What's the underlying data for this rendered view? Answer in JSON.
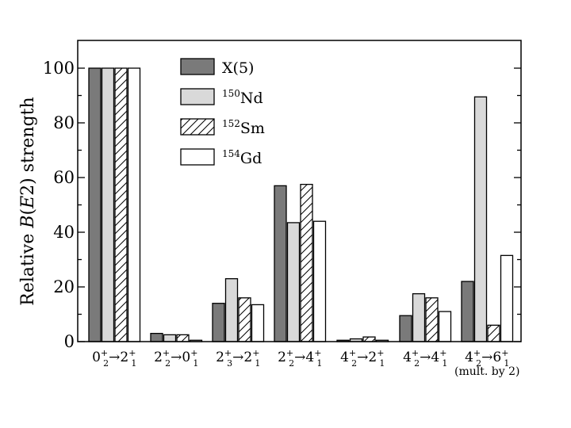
{
  "chart_data": {
    "type": "bar",
    "ylabel": "Relative B(E2) strength",
    "ylabel_parts": [
      "Relative ",
      "B",
      "(",
      "E",
      "2) strength"
    ],
    "ylim": [
      0,
      105
    ],
    "yticks": [
      0,
      20,
      40,
      60,
      80,
      100
    ],
    "grid": false,
    "legend_position": "top-left-center",
    "categories": [
      {
        "id": "c1",
        "from": "0",
        "from_sup": "+",
        "from_sub": "2",
        "to": "2",
        "to_sup": "+",
        "to_sub": "1"
      },
      {
        "id": "c2",
        "from": "2",
        "from_sup": "+",
        "from_sub": "2",
        "to": "0",
        "to_sup": "+",
        "to_sub": "1"
      },
      {
        "id": "c3",
        "from": "2",
        "from_sup": "+",
        "from_sub": "3",
        "to": "2",
        "to_sup": "+",
        "to_sub": "1"
      },
      {
        "id": "c4",
        "from": "2",
        "from_sup": "+",
        "from_sub": "2",
        "to": "4",
        "to_sup": "+",
        "to_sub": "1"
      },
      {
        "id": "c5",
        "from": "4",
        "from_sup": "+",
        "from_sub": "2",
        "to": "2",
        "to_sup": "+",
        "to_sub": "1"
      },
      {
        "id": "c6",
        "from": "4",
        "from_sup": "+",
        "from_sub": "2",
        "to": "4",
        "to_sup": "+",
        "to_sub": "1"
      },
      {
        "id": "c7",
        "from": "4",
        "from_sup": "+",
        "from_sub": "2",
        "to": "6",
        "to_sup": "+",
        "to_sub": "1"
      }
    ],
    "arrow": "→",
    "note": "(mult. by 2)",
    "series": [
      {
        "name": "X(5)",
        "name_pre": "",
        "name_sup": "",
        "name_main": "X(5)",
        "fill": "#7a7a7a",
        "pattern": "none",
        "values": [
          100,
          3,
          14,
          57,
          0.5,
          9.5,
          22
        ]
      },
      {
        "name": "150Nd",
        "name_pre": "",
        "name_sup": "150",
        "name_main": "Nd",
        "fill": "#d9d9d9",
        "pattern": "none",
        "values": [
          100,
          2.5,
          23,
          43.5,
          1,
          17.5,
          89.5
        ]
      },
      {
        "name": "152Sm",
        "name_pre": "",
        "name_sup": "152",
        "name_main": "Sm",
        "fill": "#ffffff",
        "pattern": "hatch",
        "values": [
          100,
          2.5,
          16,
          57.5,
          1.7,
          16,
          6
        ]
      },
      {
        "name": "154Gd",
        "name_pre": "",
        "name_sup": "154",
        "name_main": "Gd",
        "fill": "#ffffff",
        "pattern": "none",
        "values": [
          100,
          0.5,
          13.5,
          44,
          0.5,
          11,
          31.5
        ]
      }
    ]
  }
}
